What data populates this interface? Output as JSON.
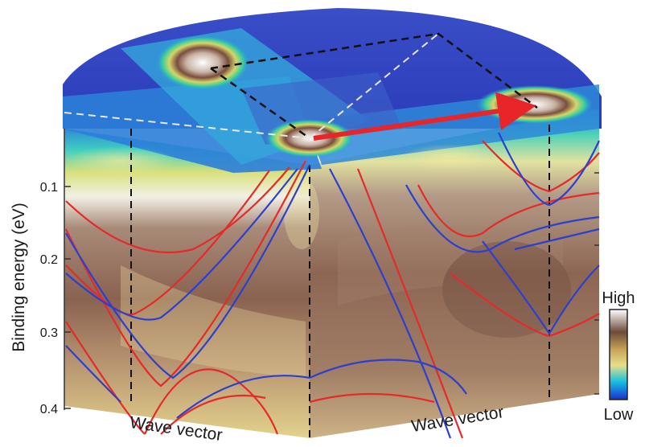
{
  "figure": {
    "y_axis_label": "Binding energy (eV)",
    "y_ticks": [
      "0.1",
      "0.2",
      "0.3",
      "0.4"
    ],
    "x_label_left": "Wave vector",
    "x_label_right": "Wave vector",
    "colorbar": {
      "high_label": "High",
      "low_label": "Low",
      "colors": [
        "#1a2fd0",
        "#18c0e0",
        "#e6df8a",
        "#c9a55a",
        "#6e4a3a",
        "#ffffff"
      ]
    }
  }
}
